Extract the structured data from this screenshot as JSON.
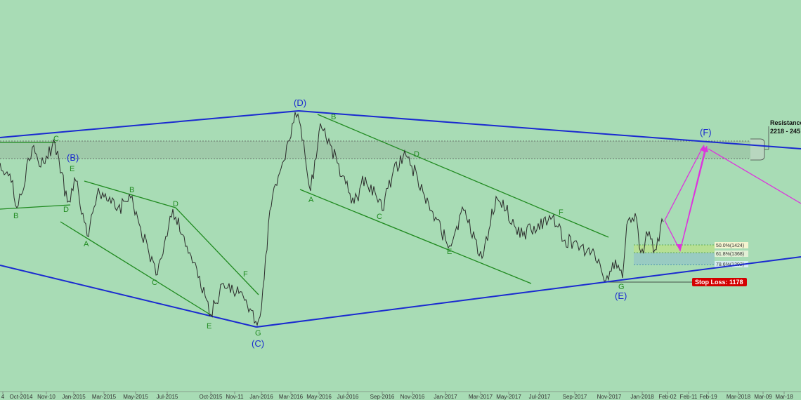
{
  "colors": {
    "background": "#a8dcb5",
    "price": "#2b2b2b",
    "channel_green": "#1f8a1f",
    "channel_blue": "#1a2ad0",
    "projection": "#dd33dd",
    "stop_loss": "#d40000"
  },
  "chart_data": {
    "type": "line",
    "x_ticks": [
      "4",
      "Oct-2014",
      "Nov-10",
      "Jan-2015",
      "Mar-2015",
      "May-2015",
      "Jul-2015",
      "Oct-2015",
      "Nov-11",
      "Jan-2016",
      "Mar-2016",
      "May-2016",
      "Jul-2016",
      "Sep-2016",
      "Nov-2016",
      "Jan-2017",
      "Mar-2017",
      "May-2017",
      "Jul-2017",
      "Sep-2017",
      "Nov-2017",
      "Jan-2018",
      "Feb-02",
      "Feb-11",
      "Feb-19",
      "Mar-2018",
      "Mar-09",
      "Mar-18"
    ],
    "wave_labels": {
      "green": [
        "C",
        "E",
        "B",
        "D",
        "A",
        "B",
        "D",
        "C",
        "E",
        "F",
        "G",
        "B",
        "A",
        "D",
        "C",
        "E",
        "F",
        "G"
      ],
      "blue": [
        "(B)",
        "(C)",
        "(D)",
        "(E)",
        "(F)"
      ]
    },
    "resistance": {
      "label": "Resistance",
      "value": "2218 - 245"
    },
    "fib_levels": [
      {
        "label": "50.0%(1424)",
        "price": 1424
      },
      {
        "label": "61.8%(1368)",
        "price": 1368
      },
      {
        "label": "78.6%(1292)",
        "price": 1292
      }
    ],
    "stop_loss": {
      "label": "Stop Loss: 1178",
      "price": 1178
    },
    "grid": false,
    "legend": "none"
  }
}
